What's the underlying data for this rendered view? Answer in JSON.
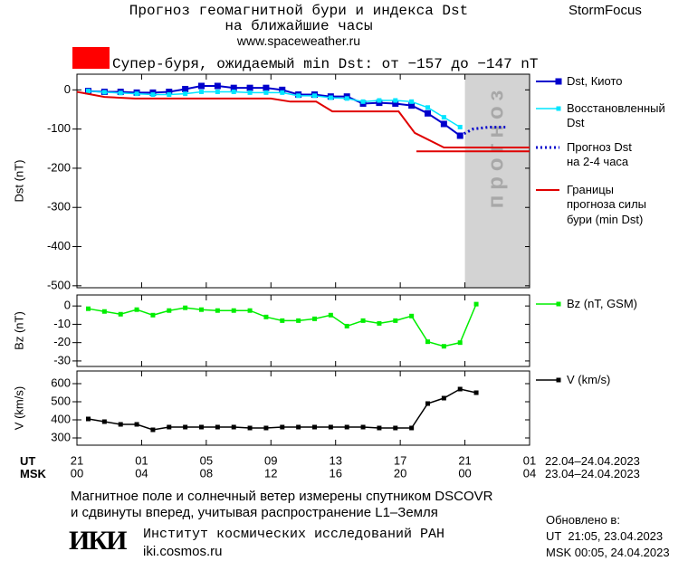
{
  "header": {
    "title": "Прогноз геомагнитной бури и индекса Dst",
    "subtitle": "на ближайшие часы",
    "url": "www.spaceweather.ru",
    "brand": "StormFocus"
  },
  "chart_data": [
    {
      "type": "line",
      "ylabel": "Dst (nT)",
      "xlim": [
        0,
        28
      ],
      "ylim": [
        -505,
        40
      ],
      "yticks": [
        0,
        -100,
        -200,
        -300,
        -400,
        -500
      ],
      "annotation": "Супер-буря, ожидаемый min Dst: от −157 до −147 nT",
      "annotation_color": "#ff0000",
      "forecast_region": {
        "label": "прогноз",
        "xlim": [
          24,
          28
        ],
        "color": "#d3d3d3"
      },
      "series": [
        {
          "name": "Dst, Киото",
          "color": "#0000cc",
          "marker": "large-square",
          "linestyle": "solid",
          "x": [
            0.7,
            1.7,
            2.7,
            3.7,
            4.7,
            5.7,
            6.7,
            7.7,
            8.7,
            9.7,
            10.7,
            11.7,
            12.7,
            13.7,
            14.7,
            15.7,
            16.7,
            17.7,
            18.7,
            19.7,
            20.7,
            21.7,
            22.7,
            23.7
          ],
          "values": [
            -3,
            -5,
            -5,
            -7,
            -7,
            -5,
            2,
            10,
            10,
            5,
            5,
            5,
            0,
            -12,
            -12,
            -17,
            -17,
            -35,
            -33,
            -35,
            -40,
            -60,
            -87,
            -117
          ]
        },
        {
          "name": "Восстановленный\nDst",
          "color": "#00e5ff",
          "marker": "small-square",
          "linestyle": "solid",
          "x": [
            0.7,
            1.7,
            2.7,
            3.7,
            4.7,
            5.7,
            6.7,
            7.7,
            8.7,
            9.7,
            10.7,
            11.7,
            12.7,
            13.7,
            14.7,
            15.7,
            16.7,
            17.7,
            18.7,
            19.7,
            20.7,
            21.7,
            22.7,
            23.7
          ],
          "values": [
            -3,
            -6,
            -8,
            -10,
            -12,
            -12,
            -10,
            -5,
            -5,
            -5,
            -7,
            -7,
            -7,
            -15,
            -15,
            -20,
            -22,
            -30,
            -27,
            -27,
            -30,
            -45,
            -70,
            -95
          ]
        },
        {
          "name": "Прогноз Dst\nна 2-4 часа",
          "color": "#0000cc",
          "marker": "none",
          "linestyle": "dotted",
          "x": [
            23.7,
            24.5,
            25.5,
            26.5
          ],
          "values": [
            -117,
            -100,
            -95,
            -95
          ]
        },
        {
          "name": "Границы\nпрогноза силы\nбури (min Dst)",
          "color": "#e00000",
          "marker": "none",
          "linestyle": "solid",
          "x": [
            0,
            1.7,
            3.6,
            12,
            13.2,
            14.8,
            15.8,
            19.9,
            20.9,
            22.7,
            28,
            null,
            21,
            28
          ],
          "values": [
            -5,
            -18,
            -22,
            -22,
            -30,
            -30,
            -55,
            -55,
            -110,
            -147,
            -147,
            null,
            -157,
            -157
          ]
        }
      ]
    },
    {
      "type": "line",
      "ylabel": "Bz (nT)",
      "xlim": [
        0,
        28
      ],
      "ylim": [
        -33,
        6
      ],
      "yticks": [
        0,
        -10,
        -20,
        -30
      ],
      "series": [
        {
          "name": "Bz (nT, GSM)",
          "color": "#00ee00",
          "marker": "small-square",
          "linestyle": "solid",
          "x": [
            0.7,
            1.7,
            2.7,
            3.7,
            4.7,
            5.7,
            6.7,
            7.7,
            8.7,
            9.7,
            10.7,
            11.7,
            12.7,
            13.7,
            14.7,
            15.7,
            16.7,
            17.7,
            18.7,
            19.7,
            20.7,
            21.7,
            22.7,
            23.7,
            24.7
          ],
          "values": [
            -1.5,
            -3,
            -4.5,
            -2,
            -5,
            -2.5,
            -1,
            -2,
            -2.5,
            -2.5,
            -2.5,
            -6,
            -8,
            -8,
            -7,
            -5,
            -11,
            -8,
            -9.5,
            -8,
            -5.5,
            -19.5,
            -22,
            -20,
            1
          ]
        }
      ]
    },
    {
      "type": "line",
      "ylabel": "V (km/s)",
      "xlim": [
        0,
        28
      ],
      "ylim": [
        260,
        670
      ],
      "yticks": [
        300,
        400,
        500,
        600
      ],
      "xticks": [
        {
          "value": 0,
          "label": "21"
        },
        {
          "value": 4,
          "label": "01"
        },
        {
          "value": 8,
          "label": "05"
        },
        {
          "value": 12,
          "label": "09"
        },
        {
          "value": 16,
          "label": "13"
        },
        {
          "value": 20,
          "label": "17"
        },
        {
          "value": 24,
          "label": "21"
        },
        {
          "value": 28,
          "label": "01"
        }
      ],
      "xticks_msk": [
        "00",
        "04",
        "08",
        "12",
        "16",
        "20",
        "00",
        "04"
      ],
      "xlabel": "UT",
      "xlabel_msk": "MSK",
      "date_range_ut": "22.04–24.04.2023",
      "date_range_msk": "23.04–24.04.2023",
      "series": [
        {
          "name": "V (km/s)",
          "color": "#000000",
          "marker": "small-square",
          "linestyle": "solid",
          "x": [
            0.7,
            1.7,
            2.7,
            3.7,
            4.7,
            5.7,
            6.7,
            7.7,
            8.7,
            9.7,
            10.7,
            11.7,
            12.7,
            13.7,
            14.7,
            15.7,
            16.7,
            17.7,
            18.7,
            19.7,
            20.7,
            21.7,
            22.7,
            23.7,
            24.7
          ],
          "values": [
            405,
            390,
            375,
            375,
            345,
            360,
            360,
            360,
            360,
            360,
            355,
            355,
            360,
            360,
            360,
            360,
            360,
            360,
            355,
            355,
            355,
            490,
            520,
            570,
            550
          ]
        }
      ]
    }
  ],
  "footer": {
    "note": "Магнитное поле и солнечный ветер измерены спутником DSCOVR\nи сдвинуты вперед, учитывая распространение L1–Земля",
    "logo": "ИКИ",
    "institute": "Институт космических исследований РАН",
    "site": "iki.cosmos.ru",
    "updated_title": "Обновлено в:",
    "updated_ut": "UT  21:05, 23.04.2023",
    "updated_msk": "MSK 00:05, 24.04.2023"
  }
}
